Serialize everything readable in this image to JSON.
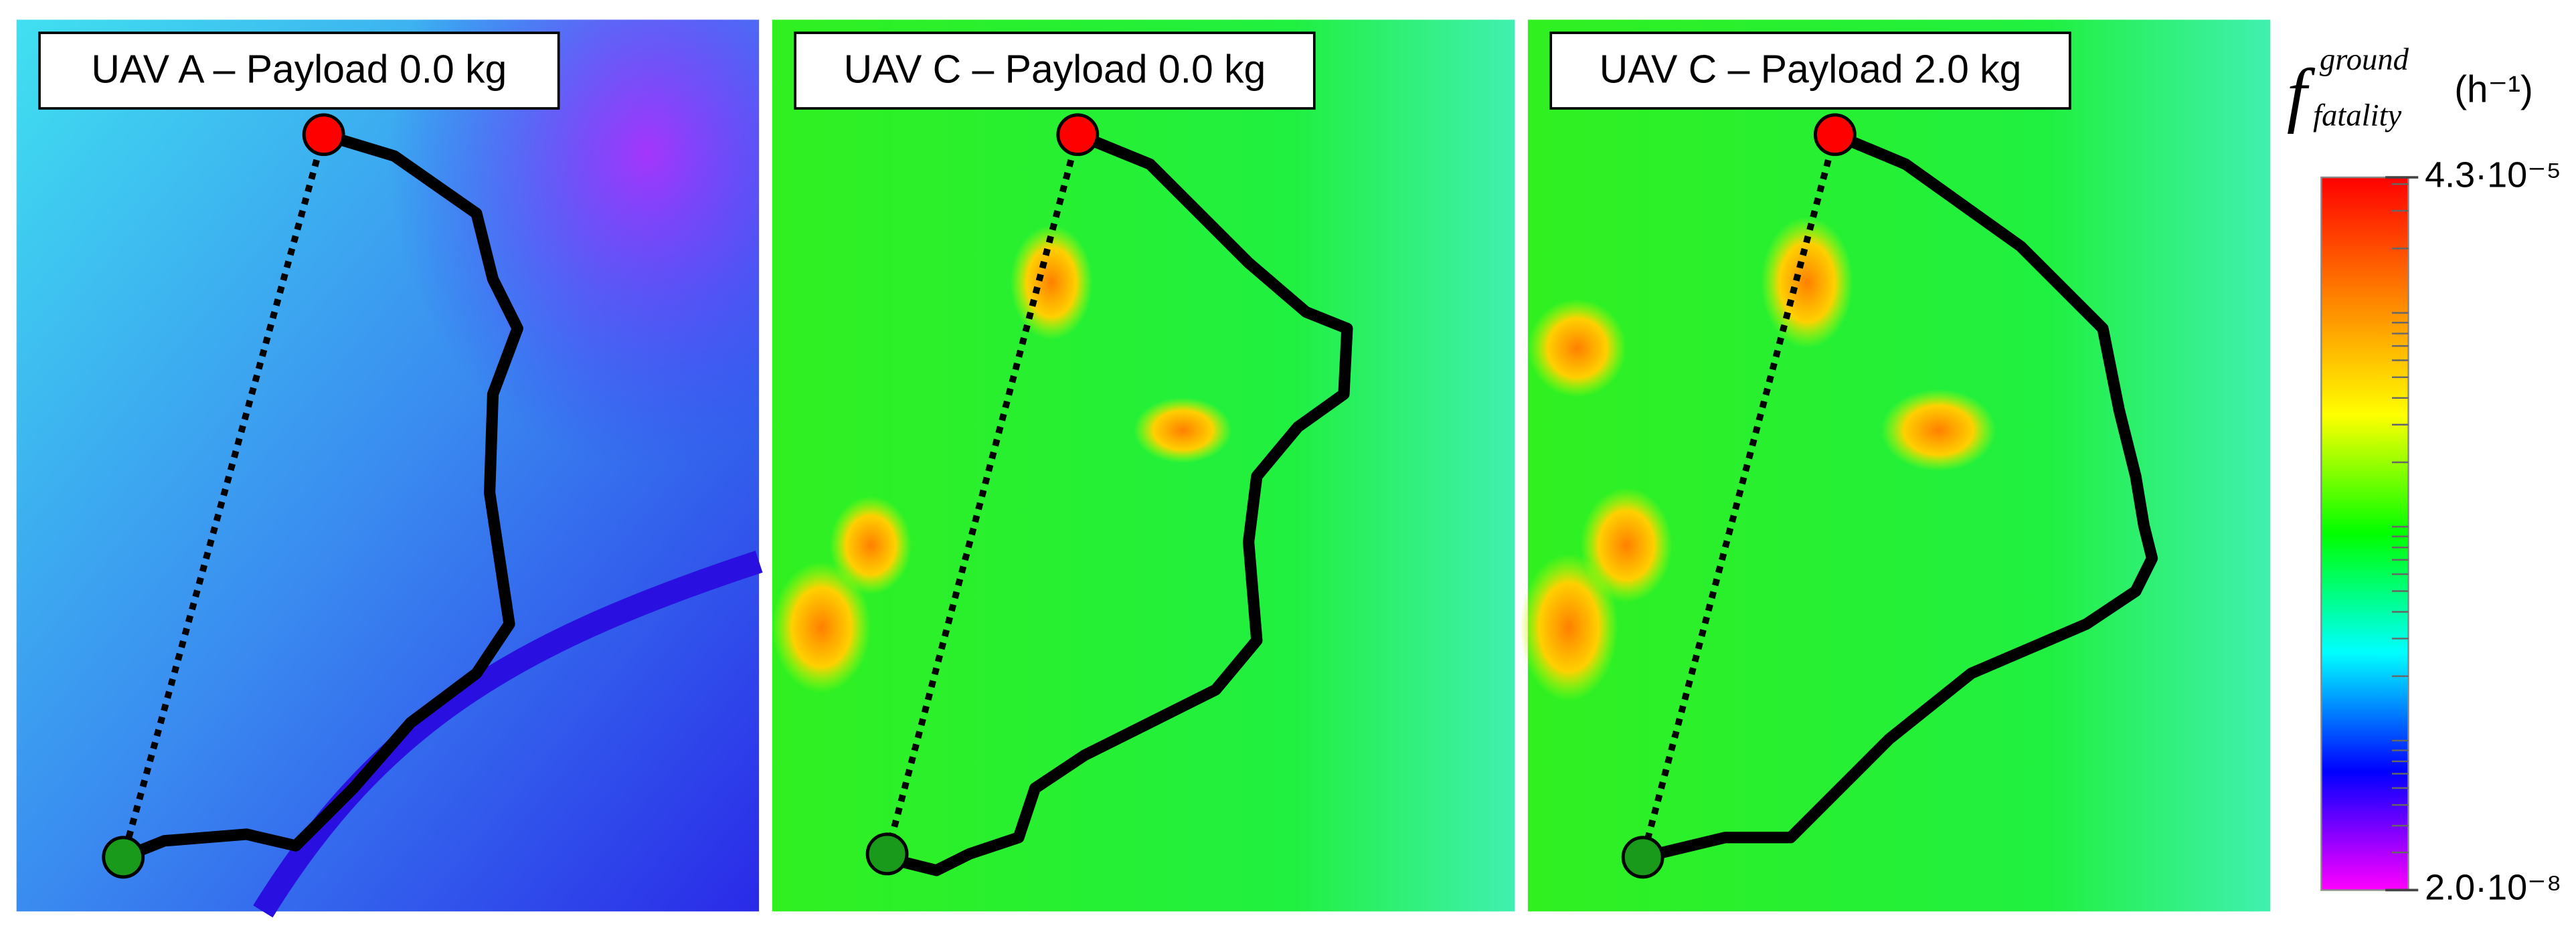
{
  "panels": [
    {
      "title": "UAV A – Payload 0.0 kg"
    },
    {
      "title": "UAV C – Payload 0.0 kg"
    },
    {
      "title": "UAV C – Payload 2.0 kg"
    }
  ],
  "colorbar": {
    "symbol": "f",
    "superscript": "ground",
    "subscript": "fatality",
    "unit": "(h⁻¹)",
    "scale": "log",
    "lim": [
      2e-08,
      4.3e-05
    ],
    "ticks": [
      {
        "value": 4.3e-05,
        "label": "4.3·10⁻⁵"
      },
      {
        "value": 2e-08,
        "label": "2.0·10⁻⁸"
      }
    ],
    "minor_ticks": [
      3e-08,
      4e-08,
      5e-08,
      6e-08,
      7e-08,
      8e-08,
      9e-08,
      1e-07,
      2e-07,
      3e-07,
      4e-07,
      5e-07,
      6e-07,
      7e-07,
      8e-07,
      9e-07,
      1e-06,
      2e-06,
      3e-06,
      4e-06,
      5e-06,
      6e-06,
      7e-06,
      8e-06,
      9e-06,
      1e-05,
      2e-05,
      3e-05,
      4e-05
    ],
    "colors": [
      "#ff0000",
      "#ff8000",
      "#ffff00",
      "#00ff00",
      "#00ffff",
      "#0000ff",
      "#ff00ff"
    ]
  }
}
